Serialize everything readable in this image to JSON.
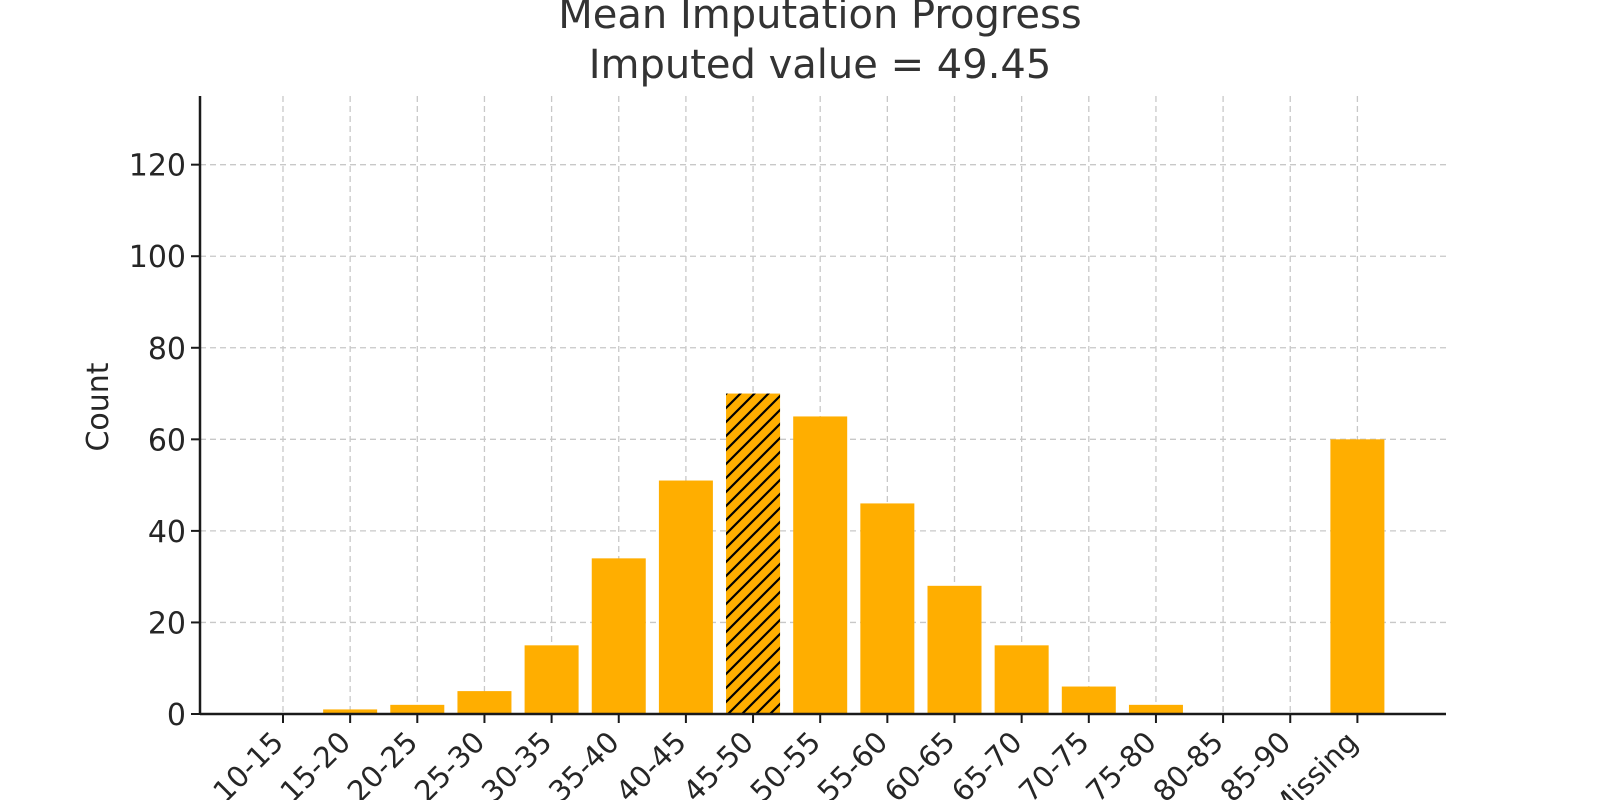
{
  "chart_data": {
    "type": "bar",
    "title": "Mean Imputation Progress",
    "subtitle": "Imputed value = 49.45",
    "xlabel": "",
    "ylabel": "Count",
    "ylim": [
      0,
      135
    ],
    "yticks": [
      0,
      20,
      40,
      60,
      80,
      100,
      120
    ],
    "grid": true,
    "categories": [
      "10-15",
      "15-20",
      "20-25",
      "25-30",
      "30-35",
      "35-40",
      "40-45",
      "45-50",
      "50-55",
      "55-60",
      "60-65",
      "65-70",
      "70-75",
      "75-80",
      "80-85",
      "85-90",
      "Missing"
    ],
    "values": [
      0,
      1,
      2,
      5,
      15,
      34,
      51,
      70,
      65,
      46,
      28,
      15,
      6,
      2,
      0,
      0,
      60
    ],
    "highlighted_category": "45-50",
    "bar_color": "#FFAE00",
    "hatch_color": "#000000"
  }
}
